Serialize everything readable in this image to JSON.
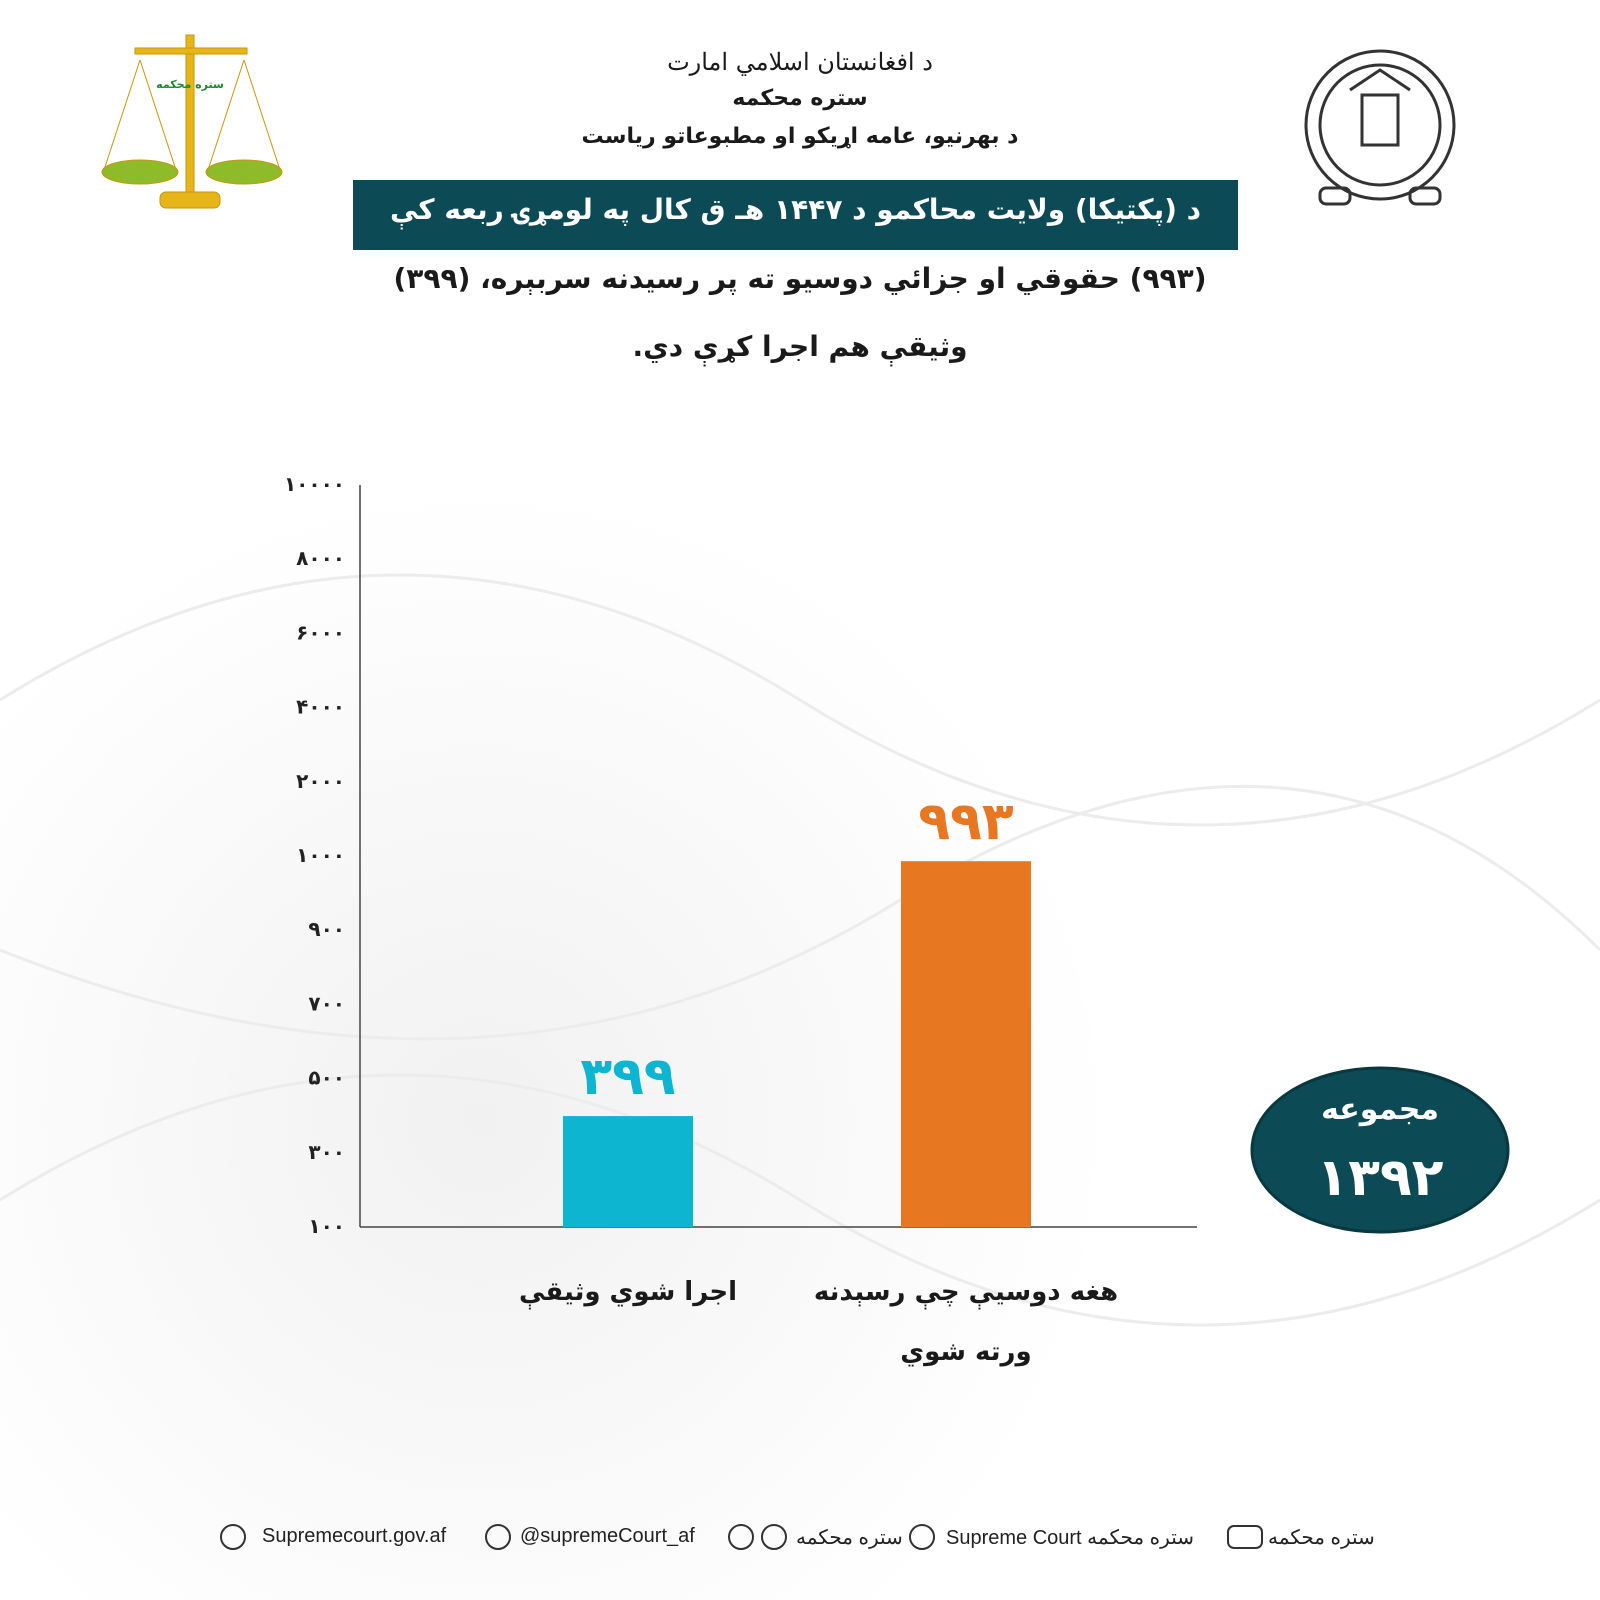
{
  "header": {
    "emirate": "د افغانستان اسلامي امارت",
    "court": "ستره محکمه",
    "department": "د بهرنيو، عامه اړيکو او مطبوعاتو رياست",
    "logo_text": "ستره محکمه"
  },
  "chart_data": {
    "type": "bar",
    "title": "د (پکتيکا) ولايت محاکمو د ۱۴۴۷ هـ ق کال په لومړۍ ربعه کې",
    "subtitle": [
      "(۹۹۳) حقوقي او جزائي دوسيو ته پر رسيدنه سربېره، (۳۹۹)",
      "وثيقې هم اجرا کړې دي."
    ],
    "categories": [
      "اجرا شوي وثيقې",
      "هغه دوسيې چې رسېدنه ورته شوي"
    ],
    "values": [
      399,
      993
    ],
    "value_labels": [
      "۳۹۹",
      "۹۹۳"
    ],
    "colors": [
      "#0db5d1",
      "#e87722"
    ],
    "ylim": [
      100,
      10000
    ],
    "yticks": [
      {
        "value": 100,
        "label": "۱۰۰"
      },
      {
        "value": 300,
        "label": "۳۰۰"
      },
      {
        "value": 500,
        "label": "۵۰۰"
      },
      {
        "value": 700,
        "label": "۷۰۰"
      },
      {
        "value": 900,
        "label": "۹۰۰"
      },
      {
        "value": 1000,
        "label": "۱۰۰۰"
      },
      {
        "value": 2000,
        "label": "۲۰۰۰"
      },
      {
        "value": 4000,
        "label": "۴۰۰۰"
      },
      {
        "value": 6000,
        "label": "۶۰۰۰"
      },
      {
        "value": 8000,
        "label": "۸۰۰۰"
      },
      {
        "value": 10000,
        "label": "۱۰۰۰۰"
      }
    ],
    "grid": false
  },
  "total": {
    "label": "مجموعه",
    "value": "۱۳۹۲"
  },
  "footer": {
    "website": "Supremecourt.gov.af",
    "x": "@supremeCourt_af",
    "messengers": "ستره محکمه",
    "facebook": "Supreme Court ستره محکمه",
    "youtube": "ستره محکمه"
  }
}
